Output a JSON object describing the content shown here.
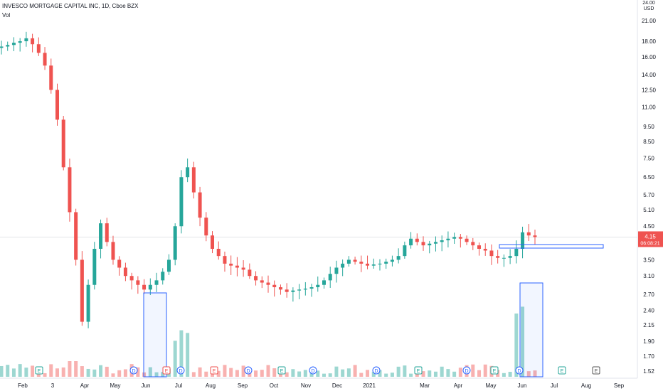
{
  "header": {
    "title": "INVESCO MORTGAGE CAPITAL INC, 1D, Cboe BZX",
    "volume_label": "Vol"
  },
  "price_axis": {
    "currency": "USD",
    "top_label": "24.00",
    "ticks": [
      "21.00",
      "18.00",
      "16.00",
      "14.00",
      "12.50",
      "11.00",
      "9.50",
      "8.50",
      "7.50",
      "6.50",
      "5.70",
      "5.10",
      "4.50",
      "3.50",
      "3.10",
      "2.70",
      "2.40",
      "2.15",
      "1.90",
      "1.70",
      "1.52"
    ],
    "last_price": "4.15",
    "countdown": "06:08:21",
    "last_price_color": "#ef5350"
  },
  "time_axis": {
    "labels": [
      "Feb",
      "3",
      "Apr",
      "May",
      "Jun",
      "Jul",
      "Aug",
      "Sep",
      "Oct",
      "Nov",
      "Dec",
      "2021",
      "Mar",
      "Apr",
      "May",
      "Jun",
      "Jul",
      "Aug",
      "Sep"
    ]
  },
  "event_markers": [
    {
      "type": "E",
      "label": "E"
    },
    {
      "type": "D",
      "label": "D"
    },
    {
      "type": "E",
      "label": "E"
    },
    {
      "type": "D",
      "label": "D"
    },
    {
      "type": "E",
      "label": "E"
    },
    {
      "type": "D",
      "label": "D"
    },
    {
      "type": "E",
      "label": "E"
    },
    {
      "type": "D",
      "label": "D"
    },
    {
      "type": "D",
      "label": "D"
    },
    {
      "type": "E",
      "label": "E"
    },
    {
      "type": "D",
      "label": "D"
    },
    {
      "type": "E",
      "label": "E"
    },
    {
      "type": "D",
      "label": "D"
    },
    {
      "type": "E",
      "label": "E"
    },
    {
      "type": "E",
      "label": "E"
    }
  ],
  "colors": {
    "up": "#26a69a",
    "down": "#ef5350",
    "box": "#2962ff",
    "earnings_green": "#26a69a",
    "earnings_red": "#ef5350",
    "dividend_blue": "#2962ff",
    "future_earnings": "#555555"
  },
  "chart_data": {
    "type": "candlestick",
    "series": [
      {
        "name": "Price",
        "values": [
          17.3,
          17.5,
          17.8,
          18.0,
          18.4,
          17.6,
          16.5,
          15.0,
          12.5,
          10.0,
          7.0,
          5.0,
          3.5,
          2.2,
          2.9,
          3.8,
          4.6,
          4.0,
          3.5,
          3.3,
          3.1,
          3.0,
          2.9,
          2.8,
          2.9,
          3.0,
          3.2,
          3.5,
          4.5,
          6.5,
          7.0,
          5.8,
          4.8,
          4.2,
          3.8,
          3.6,
          3.4,
          3.35,
          3.3,
          3.25,
          3.1,
          3.0,
          2.95,
          2.9,
          2.85,
          2.8,
          2.75,
          2.78,
          2.8,
          2.82,
          2.85,
          2.9,
          3.0,
          3.15,
          3.3,
          3.4,
          3.5,
          3.45,
          3.4,
          3.35,
          3.38,
          3.4,
          3.45,
          3.5,
          3.6,
          3.9,
          4.1,
          4.0,
          3.9,
          3.95,
          4.0,
          4.05,
          4.1,
          4.15,
          4.1,
          4.0,
          3.9,
          3.8,
          3.75,
          3.6,
          3.55,
          3.55,
          3.6,
          3.8,
          4.3,
          4.2,
          4.15
        ]
      }
    ],
    "volume_highlight": [
      {
        "region": "Jun 2020 spike"
      },
      {
        "region": "Jun 2021 spike"
      }
    ],
    "ylim": [
      1.52,
      24.0
    ],
    "scale": "log",
    "grid": false
  }
}
